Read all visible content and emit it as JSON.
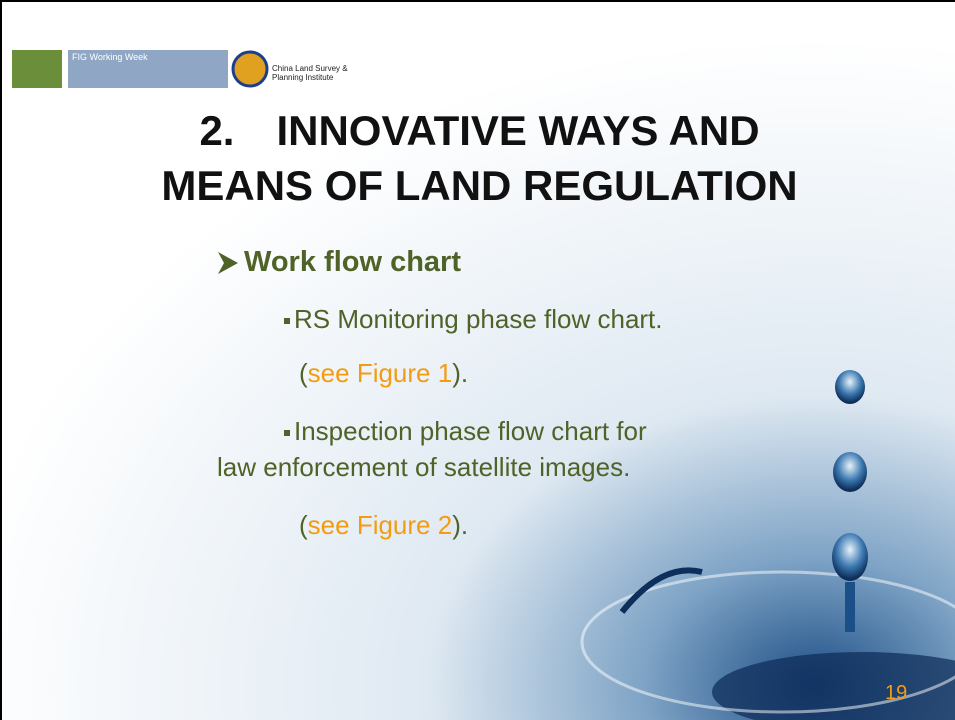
{
  "header": {
    "logos": [
      "FIG Working Week",
      "China Land Survey & Planning Institute"
    ]
  },
  "title": {
    "lines": [
      "2.　INNOVATIVE WAYS AND",
      "MEANS OF LAND REGULATION"
    ]
  },
  "heading": "Work flow chart",
  "items": [
    {
      "lines": [
        "RS Monitoring phase flow chart."
      ],
      "reference": {
        "open": "(",
        "link": "see Figure 1",
        "close": ")."
      }
    },
    {
      "lines": [
        "Inspection phase flow chart for",
        "law enforcement of satellite images."
      ],
      "reference": {
        "open": "(",
        "link": "see Figure 2",
        "close": ")."
      }
    }
  ],
  "page_number": "19"
}
